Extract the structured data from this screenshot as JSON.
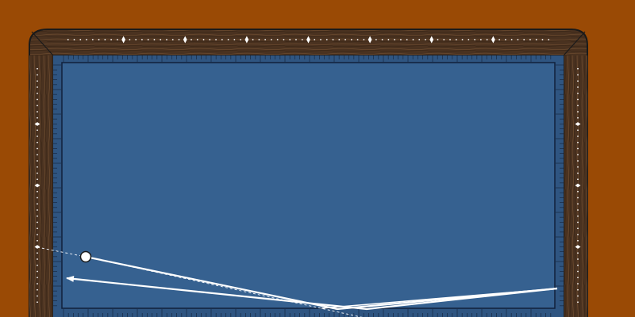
{
  "game": {
    "type": "three-cushion-billiards-diagram",
    "background_color": "#9a4a05",
    "rail_color": "#4a3220",
    "rail_grain_color": "#6b4a2e",
    "cloth_color": "#366190",
    "cushion_line_color": "#1b2e4a",
    "diamond_color": "#ffffff",
    "path_color": "#ffffff",
    "ball": {
      "color": "#ffffff",
      "outline": "#1a1a1a"
    }
  }
}
